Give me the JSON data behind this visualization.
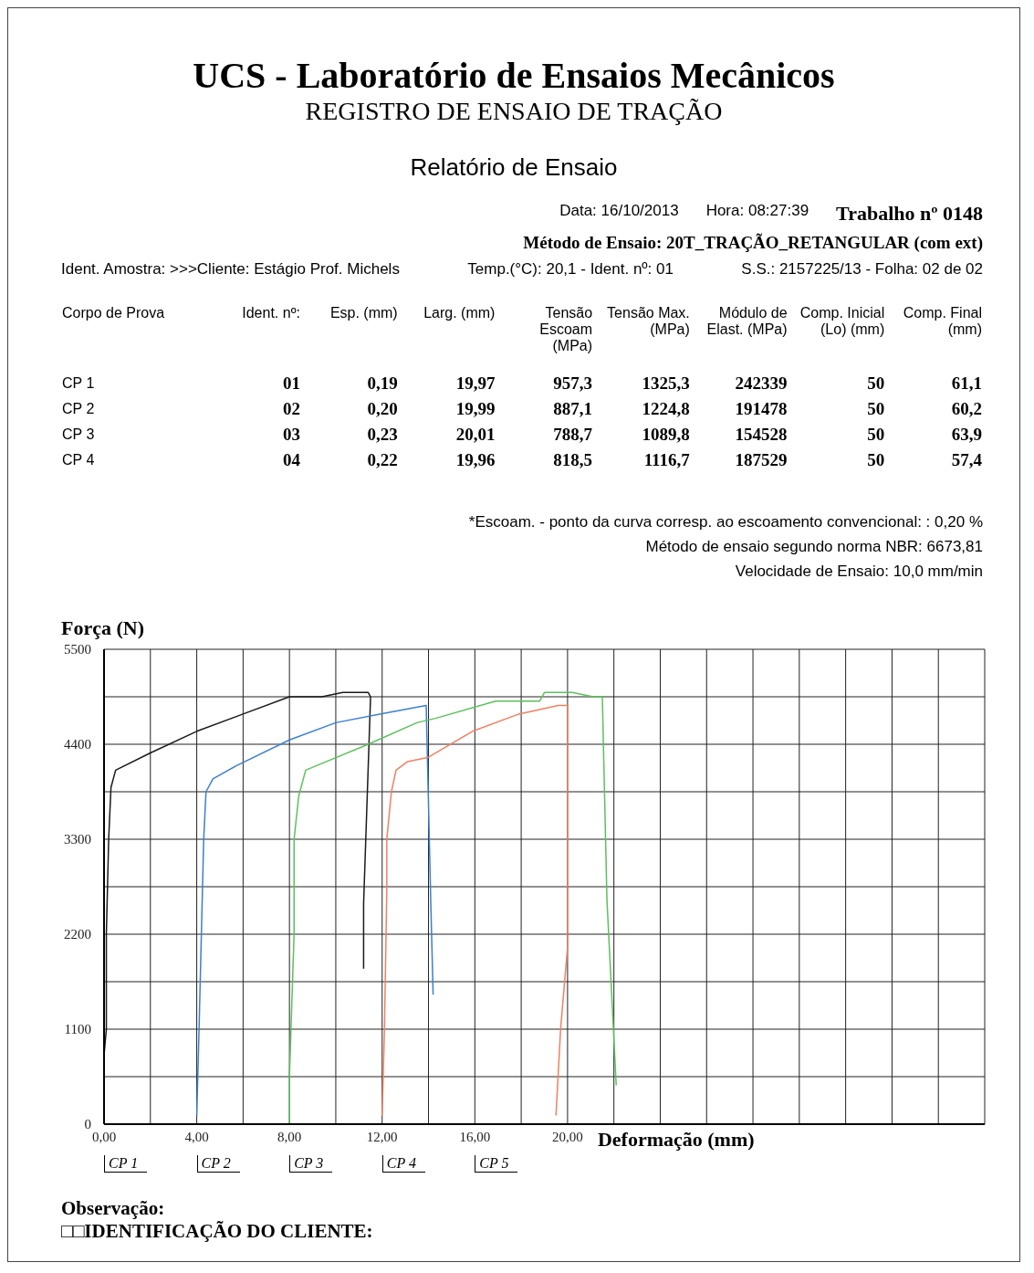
{
  "chart_data": {
    "type": "line",
    "title": "UCS - Laboratório de Ensaios Mecânicos",
    "subtitle": "REGISTRO DE ENSAIO DE TRAÇÃO",
    "xlabel": "Deformação (mm)",
    "ylabel": "Força (N)",
    "annotations": [
      "Relatório de Ensaio",
      "Data: 16/10/2013",
      "Hora: 08:27:39",
      "Trabalho nº 0148",
      "Método de Ensaio: 20T_TRAÇÃO_RETANGULAR (com ext)",
      "Ident. Amostra: >>>Cliente: Estágio Prof. Michels",
      "Temp.(°C): 20,1 - Ident. nº: 01",
      "S.S.: 2157225/13 - Folha: 02 de 02",
      "Corpo de Prova",
      "Ident. nº:",
      "Esp. (mm)",
      "Larg. (mm)",
      "Tensão Escoam (MPa)",
      "Tensão Max. (MPa)",
      "Módulo de Elast. (MPa)",
      "Comp. Inicial (Lo) (mm)",
      "Comp. Final (mm)",
      "CP 1",
      "01",
      "0,19",
      "19,97",
      "957,3",
      "1325,3",
      "242339",
      "50",
      "61,1",
      "CP 2",
      "02",
      "0,20",
      "19,99",
      "887,1",
      "1224,8",
      "191478",
      "50",
      "60,2",
      "CP 3",
      "03",
      "0,23",
      "20,01",
      "788,7",
      "1089,8",
      "154528",
      "50",
      "63,9",
      "CP 4",
      "04",
      "0,22",
      "19,96",
      "818,5",
      "1116,7",
      "187529",
      "50",
      "57,4",
      "*Escoam. - ponto da curva corresp. ao escoamento convencional: : 0,20 %",
      "Método de ensaio segundo norma NBR: 6673,81",
      "Velocidade de Ensaio: 10,0 mm/min",
      "Observação:",
      "□□IDENTIFICAÇÃO DO CLIENTE:",
      "CP 1",
      "CP 2",
      "CP 3",
      "CP 4",
      "CP 5"
    ],
    "series": [
      {
        "color": "#1a1a1a",
        "x": [
          0,
          0.1,
          0.1,
          0.2,
          0.3,
          0.5,
          2,
          4,
          6,
          8,
          9.4,
          10.3,
          11.4,
          11.5,
          11.2,
          11.2
        ],
        "values": [
          800,
          1100,
          2200,
          3300,
          3900,
          4100,
          4300,
          4550,
          4750,
          4950,
          4950,
          5000,
          5000,
          4950,
          2550,
          1800
        ]
      },
      {
        "color": "#3a7fd5",
        "x": [
          4.0,
          4.1,
          4.2,
          4.3,
          4.4,
          4.7,
          5.7,
          8,
          10,
          11.9,
          13.9,
          14.1,
          14.2
        ],
        "values": [
          100,
          1100,
          2200,
          3300,
          3850,
          4000,
          4150,
          4450,
          4650,
          4750,
          4850,
          2550,
          1500
        ]
      },
      {
        "color": "#5cc05c",
        "x": [
          8.0,
          8.0,
          8.2,
          8.2,
          8.4,
          8.7,
          9.6,
          11.4,
          13.5,
          14.3,
          16.9,
          18.8,
          19.0,
          20.2,
          21.1,
          21.5,
          21.7,
          22.1
        ],
        "values": [
          0,
          550,
          2200,
          3300,
          3800,
          4100,
          4200,
          4400,
          4650,
          4700,
          4900,
          4900,
          5000,
          5000,
          4950,
          4950,
          2600,
          450
        ]
      },
      {
        "color": "#f08060",
        "x": [
          12.0,
          12.1,
          12.2,
          12.2,
          12.4,
          12.6,
          13.1,
          14.0,
          15.9,
          17.9,
          19.6,
          20.0,
          20.0,
          20.0,
          20.0,
          19.7,
          19.5
        ],
        "values": [
          100,
          1100,
          2700,
          3300,
          3850,
          4100,
          4200,
          4250,
          4550,
          4750,
          4850,
          4850,
          3750,
          2600,
          2050,
          1100,
          100
        ]
      }
    ],
    "xlim": [
      0,
      38
    ],
    "xticks": [
      {
        "value": 0,
        "label": "0,00"
      },
      {
        "value": 2,
        "label": null
      },
      {
        "value": 4,
        "label": "4,00"
      },
      {
        "value": 6,
        "label": null
      },
      {
        "value": 8,
        "label": "8,00"
      },
      {
        "value": 10,
        "label": null
      },
      {
        "value": 12,
        "label": "12,00"
      },
      {
        "value": 14,
        "label": null
      },
      {
        "value": 16,
        "label": "16,00"
      },
      {
        "value": 18,
        "label": null
      },
      {
        "value": 20,
        "label": "20,00"
      },
      {
        "value": 22,
        "label": null
      },
      {
        "value": 24,
        "label": null
      },
      {
        "value": 26,
        "label": null
      },
      {
        "value": 28,
        "label": null
      },
      {
        "value": 30,
        "label": null
      },
      {
        "value": 32,
        "label": null
      },
      {
        "value": 34,
        "label": null
      },
      {
        "value": 36,
        "label": null
      },
      {
        "value": 38,
        "label": null
      }
    ],
    "ylim": [
      0,
      5500
    ],
    "yticks": [
      0,
      {
        "value": 550,
        "label": null
      },
      1100,
      {
        "value": 1650,
        "label": null
      },
      2200,
      {
        "value": 2750,
        "label": null
      },
      3300,
      {
        "value": 3850,
        "label": null
      },
      4400,
      {
        "value": 4950,
        "label": null
      },
      5500
    ],
    "grid": true,
    "marker": "none",
    "line_style": "solid"
  }
}
